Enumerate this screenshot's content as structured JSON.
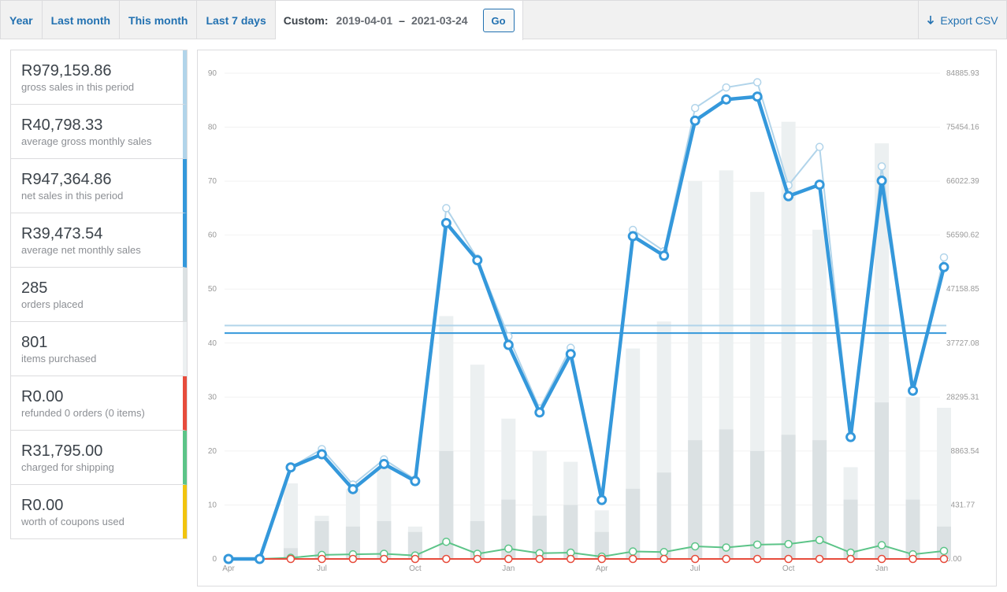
{
  "toolbar": {
    "tabs": [
      "Year",
      "Last month",
      "This month",
      "Last 7 days"
    ],
    "custom_label": "Custom:",
    "date_from": "2019-04-01",
    "date_sep": "–",
    "date_to": "2021-03-24",
    "go_label": "Go",
    "export_label": "Export CSV",
    "export_icon": "download-arrow-icon"
  },
  "legend": [
    {
      "value": "R979,159.86",
      "label": "gross sales in this period",
      "color": "#b1d4ea"
    },
    {
      "value": "R40,798.33",
      "label": "average gross monthly sales",
      "color": "#b1d4ea"
    },
    {
      "value": "R947,364.86",
      "label": "net sales in this period",
      "color": "#3498db"
    },
    {
      "value": "R39,473.54",
      "label": "average net monthly sales",
      "color": "#3498db"
    },
    {
      "value": "285",
      "label": "orders placed",
      "color": "#dbe1e3"
    },
    {
      "value": "801",
      "label": "items purchased",
      "color": "#ecf0f1"
    },
    {
      "value": "R0.00",
      "label": "refunded 0 orders (0 items)",
      "color": "#e74c3c"
    },
    {
      "value": "R31,795.00",
      "label": "charged for shipping",
      "color": "#5cc488"
    },
    {
      "value": "R0.00",
      "label": "worth of coupons used",
      "color": "#f1c40f"
    }
  ],
  "chart_data": {
    "type": "bar",
    "x_tick_labels": [
      "Apr",
      "",
      "",
      "Jul",
      "",
      "",
      "Oct",
      "",
      "",
      "Jan",
      "",
      "",
      "Apr",
      "",
      "",
      "Jul",
      "",
      "",
      "Oct",
      "",
      "",
      "Jan",
      "",
      ""
    ],
    "ylim_left": [
      0,
      90
    ],
    "y_ticks_left": [
      "0",
      "10",
      "20",
      "30",
      "40",
      "50",
      "60",
      "70",
      "80",
      "90"
    ],
    "y_ticks_right": [
      "0.00",
      "9431.77",
      "18863.54",
      "28295.31",
      "37727.08",
      "47158.85",
      "56590.62",
      "66022.39",
      "75454.16",
      "84885.93"
    ],
    "grid": true,
    "series": [
      {
        "name": "items purchased",
        "kind": "bar",
        "axis": "left",
        "color": "#ecf0f1",
        "values": [
          0,
          0,
          14,
          8,
          13,
          17,
          6,
          45,
          36,
          26,
          20,
          18,
          9,
          39,
          44,
          70,
          72,
          68,
          81,
          61,
          17,
          77,
          30,
          28
        ]
      },
      {
        "name": "orders placed",
        "kind": "bar",
        "axis": "left",
        "color": "#dbe1e3",
        "values": [
          0,
          0,
          2,
          7,
          6,
          7,
          5,
          20,
          7,
          11,
          8,
          10,
          5,
          13,
          16,
          22,
          24,
          20,
          23,
          22,
          11,
          29,
          11,
          6
        ]
      },
      {
        "name": "gross sales",
        "kind": "line",
        "axis": "right",
        "color": "#b1d4ea",
        "values": [
          0,
          0,
          16000,
          19200,
          13000,
          17400,
          13900,
          61300,
          52500,
          38900,
          26300,
          36900,
          10400,
          57500,
          53800,
          78800,
          82400,
          83300,
          65300,
          72000,
          21500,
          68600,
          29300,
          52700
        ]
      },
      {
        "name": "net sales",
        "kind": "line",
        "axis": "right",
        "color": "#3498db",
        "values": [
          0,
          0,
          16000,
          18300,
          12200,
          16600,
          13600,
          58700,
          52200,
          37400,
          25600,
          35800,
          10300,
          56400,
          53000,
          76600,
          80300,
          80800,
          63400,
          65400,
          21300,
          66100,
          29400,
          51000
        ]
      },
      {
        "name": "average gross monthly sales",
        "kind": "hline",
        "axis": "right",
        "color": "#b1d4ea",
        "value": 40798.33
      },
      {
        "name": "average net monthly sales",
        "kind": "hline",
        "axis": "right",
        "color": "#3498db",
        "value": 39473.54
      },
      {
        "name": "charged for shipping",
        "kind": "line",
        "axis": "right",
        "color": "#5cc488",
        "values": [
          0,
          0,
          200,
          700,
          800,
          900,
          600,
          3000,
          900,
          1800,
          1000,
          1100,
          400,
          1300,
          1200,
          2200,
          2000,
          2500,
          2600,
          3300,
          1100,
          2400,
          800,
          1400
        ]
      },
      {
        "name": "refunds",
        "kind": "line",
        "axis": "right",
        "color": "#e74c3c",
        "values": [
          0,
          0,
          0,
          0,
          0,
          0,
          0,
          0,
          0,
          0,
          0,
          0,
          0,
          0,
          0,
          0,
          0,
          0,
          0,
          0,
          0,
          0,
          0,
          0
        ]
      }
    ]
  }
}
